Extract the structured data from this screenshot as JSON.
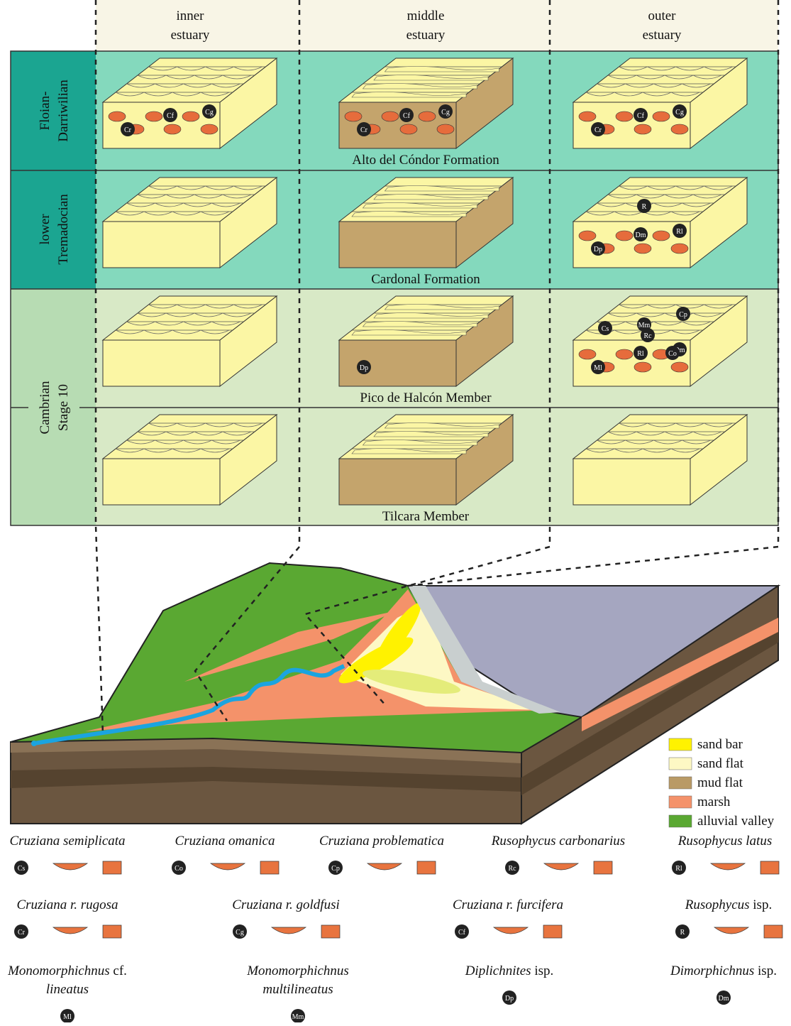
{
  "columns": [
    [
      "inner",
      "estuary"
    ],
    [
      "middle",
      "estuary"
    ],
    [
      "outer",
      "estuary"
    ]
  ],
  "periods": [
    [
      "Floian-",
      "Darriwilian"
    ],
    [
      "lower",
      "Tremadocian"
    ],
    [
      "Cambrian",
      "Stage 10"
    ]
  ],
  "rows": [
    {
      "unit": "Alto del Cóndor Formation",
      "markers": [
        [
          "Cr",
          "Cf",
          "Cg"
        ],
        [
          "Cr",
          "Cf",
          "Cg"
        ],
        [
          "Cr",
          "Cf",
          "Cg"
        ]
      ]
    },
    {
      "unit": "Cardonal Formation",
      "markers": [
        [],
        [],
        [
          "Dp",
          "Dm",
          "Rl",
          "R"
        ]
      ]
    },
    {
      "unit": "Pico de Halcón Member",
      "markers": [
        [],
        [
          "Dp"
        ],
        [
          "Ml",
          "Rl",
          "Dm",
          "Mm",
          "Cp",
          "Rc",
          "Co",
          "Cs"
        ]
      ]
    },
    {
      "unit": "Tilcara Member",
      "markers": [
        [],
        [],
        []
      ]
    }
  ],
  "legend": [
    {
      "label": "sand bar",
      "color": "#fff200"
    },
    {
      "label": "sand flat",
      "color": "#fdf8c4"
    },
    {
      "label": "mud flat",
      "color": "#b99a66"
    },
    {
      "label": "marsh",
      "color": "#f4926a"
    },
    {
      "label": "alluvial valley",
      "color": "#5aa832"
    }
  ],
  "ichnotaxa": [
    [
      {
        "name": [
          [
            {
              "text": "Cruziana semiplicata",
              "italic": true
            }
          ]
        ],
        "code": "Cs"
      },
      {
        "name": [
          [
            {
              "text": "Cruziana omanica",
              "italic": true
            }
          ]
        ],
        "code": "Co"
      },
      {
        "name": [
          [
            {
              "text": "Cruziana problematica",
              "italic": true
            }
          ]
        ],
        "code": "Cp"
      },
      {
        "name": [
          [
            {
              "text": "Rusophycus carbonarius",
              "italic": true
            }
          ]
        ],
        "code": "Rc"
      },
      {
        "name": [
          [
            {
              "text": "Rusophycus latus",
              "italic": true
            }
          ]
        ],
        "code": "Rl"
      }
    ],
    [
      {
        "name": [
          [
            {
              "text": "Cruziana r. rugosa",
              "italic": true
            }
          ]
        ],
        "code": "Cr"
      },
      {
        "name": [
          [
            {
              "text": "Cruziana r. goldfusi",
              "italic": true
            }
          ]
        ],
        "code": "Cg"
      },
      {
        "name": [
          [
            {
              "text": "Cruziana r. furcifera",
              "italic": true
            }
          ]
        ],
        "code": "Cf"
      },
      {
        "name": [
          [
            {
              "text": "Rusophycus",
              "italic": true
            },
            {
              "text": " isp.",
              "italic": false
            }
          ]
        ],
        "code": "R"
      }
    ],
    [
      {
        "name": [
          [
            {
              "text": "Monomorphichnus",
              "italic": true
            },
            {
              "text": " cf.",
              "italic": false
            }
          ],
          [
            {
              "text": "lineatus",
              "italic": true
            }
          ]
        ],
        "code": "Ml"
      },
      {
        "name": [
          [
            {
              "text": "Monomorphichnus",
              "italic": true
            }
          ],
          [
            {
              "text": "multilineatus",
              "italic": true
            }
          ]
        ],
        "code": "Mm"
      },
      {
        "name": [
          [
            {
              "text": "Diplichnites",
              "italic": true
            },
            {
              "text": " isp.",
              "italic": false
            }
          ]
        ],
        "code": "Dp"
      },
      {
        "name": [
          [
            {
              "text": "Dimorphichnus",
              "italic": true
            },
            {
              "text": " isp.",
              "italic": false
            }
          ]
        ],
        "code": "Dm"
      }
    ]
  ]
}
